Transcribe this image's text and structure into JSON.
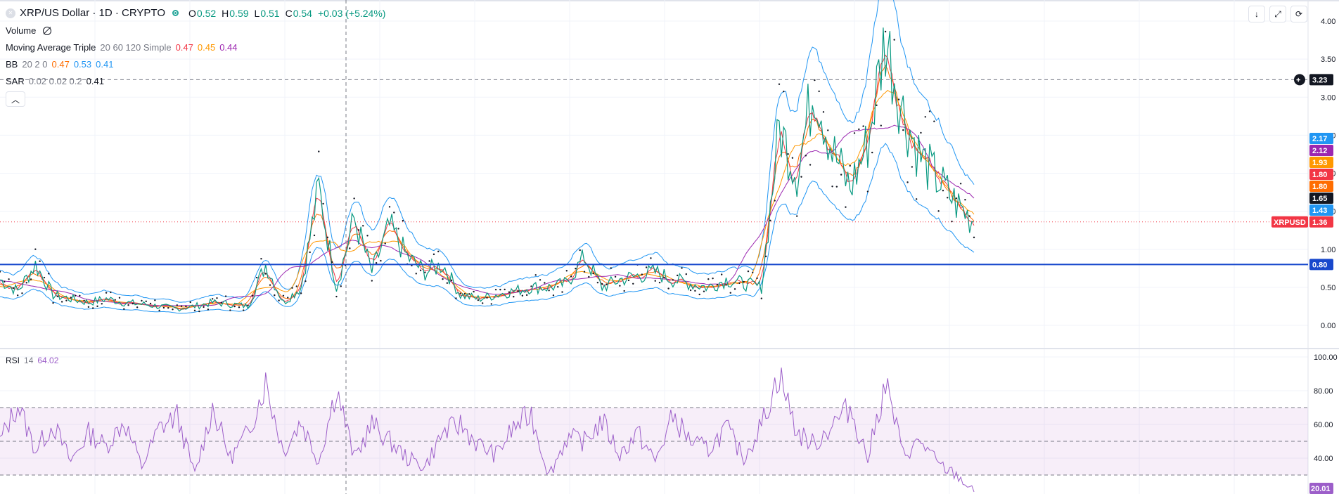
{
  "header": {
    "title": "XRP/US Dollar · 1D · CRYPTO",
    "ohlc": {
      "o_label": "O",
      "o": "0.52",
      "h_label": "H",
      "h": "0.59",
      "l_label": "L",
      "l": "0.51",
      "c_label": "C",
      "c": "0.54",
      "change": "+0.03 (+5.24%)"
    }
  },
  "indicators": {
    "volume": {
      "label": "Volume"
    },
    "ma": {
      "label": "Moving Average Triple",
      "params": "20 60 120 Simple",
      "v1": "0.47",
      "v2": "0.45",
      "v3": "0.44"
    },
    "bb": {
      "label": "BB",
      "params": "20 2 0",
      "v1": "0.47",
      "v2": "0.53",
      "v3": "0.41"
    },
    "sar": {
      "label": "SAR",
      "params": "0.02 0.02 0.2",
      "v1": "0.41"
    },
    "rsi": {
      "label": "RSI",
      "params": "14",
      "value": "64.02"
    }
  },
  "colors": {
    "ma1": "#f23645",
    "ma2": "#ff9800",
    "ma3": "#9c27b0",
    "bb_mid": "#ff6d00",
    "bb_band": "#2196f3",
    "up": "#089981",
    "down": "#f23645",
    "rsi": "#9c5ec9",
    "hline": "#1848cc"
  },
  "price_axis": {
    "ticks": [
      "4.00",
      "3.50",
      "3.00",
      "2.50",
      "2.00",
      "1.50",
      "1.00",
      "0.50",
      "0.00"
    ]
  },
  "rsi_axis": {
    "ticks": [
      "100.00",
      "80.00",
      "60.00",
      "40.00",
      "20.00"
    ]
  },
  "price_tags": [
    {
      "value": "3.23",
      "kind": "crosshair"
    },
    {
      "value": "2.17",
      "color": "#2196f3"
    },
    {
      "value": "2.12",
      "color": "#9c27b0"
    },
    {
      "value": "1.93",
      "color": "#ff9800"
    },
    {
      "value": "1.80",
      "color": "#f23645"
    },
    {
      "value": "1.80",
      "color": "#ff6d00"
    },
    {
      "value": "1.65",
      "color": "#131722"
    },
    {
      "value": "1.43",
      "color": "#2196f3"
    },
    {
      "value": "1.36",
      "color": "#f23645",
      "symbol": "XRPUSD"
    },
    {
      "value": "0.80",
      "color": "#1848cc"
    }
  ],
  "rsi_tag": {
    "value": "20.01",
    "color": "#9c5ec9"
  },
  "toolbar": {
    "download_icon": "arrow-down-icon",
    "fullscreen_icon": "expand-icon",
    "refresh_icon": "refresh-icon"
  },
  "chart_data": {
    "type": "line",
    "title": "XRP/US Dollar · 1D · CRYPTO",
    "ylim": [
      -0.3,
      4.25
    ],
    "horizontal_line": 0.8,
    "series": [
      {
        "name": "XRPUSD",
        "values": [
          0.6,
          0.45,
          0.8,
          0.4,
          0.35,
          0.3,
          0.35,
          0.3,
          0.28,
          0.25,
          0.22,
          0.25,
          0.3,
          0.28,
          0.25,
          0.8,
          0.3,
          0.5,
          1.8,
          0.5,
          1.4,
          0.7,
          1.3,
          0.9,
          0.7,
          0.8,
          0.4,
          0.35,
          0.4,
          0.45,
          0.5,
          0.5,
          0.55,
          0.9,
          0.5,
          0.6,
          0.65,
          0.7,
          0.6,
          0.55,
          0.5,
          0.6,
          0.55,
          0.5,
          2.6,
          2.0,
          3.2,
          2.3,
          1.8,
          2.4,
          3.8,
          2.8,
          2.2,
          1.9,
          1.6,
          1.36
        ]
      },
      {
        "name": "RSI",
        "values": [
          50,
          72,
          45,
          60,
          38,
          55,
          47,
          62,
          35,
          58,
          65,
          30,
          70,
          40,
          55,
          85,
          44,
          62,
          38,
          82,
          40,
          60,
          50,
          40,
          35,
          55,
          60,
          48,
          42,
          58,
          66,
          30,
          52,
          50,
          62,
          42,
          55,
          38,
          65,
          50,
          45,
          58,
          40,
          60,
          90,
          55,
          48,
          60,
          70,
          40,
          85,
          42,
          50,
          36,
          30,
          20.01
        ]
      }
    ],
    "rsi_levels": [
      70,
      50,
      30
    ]
  }
}
